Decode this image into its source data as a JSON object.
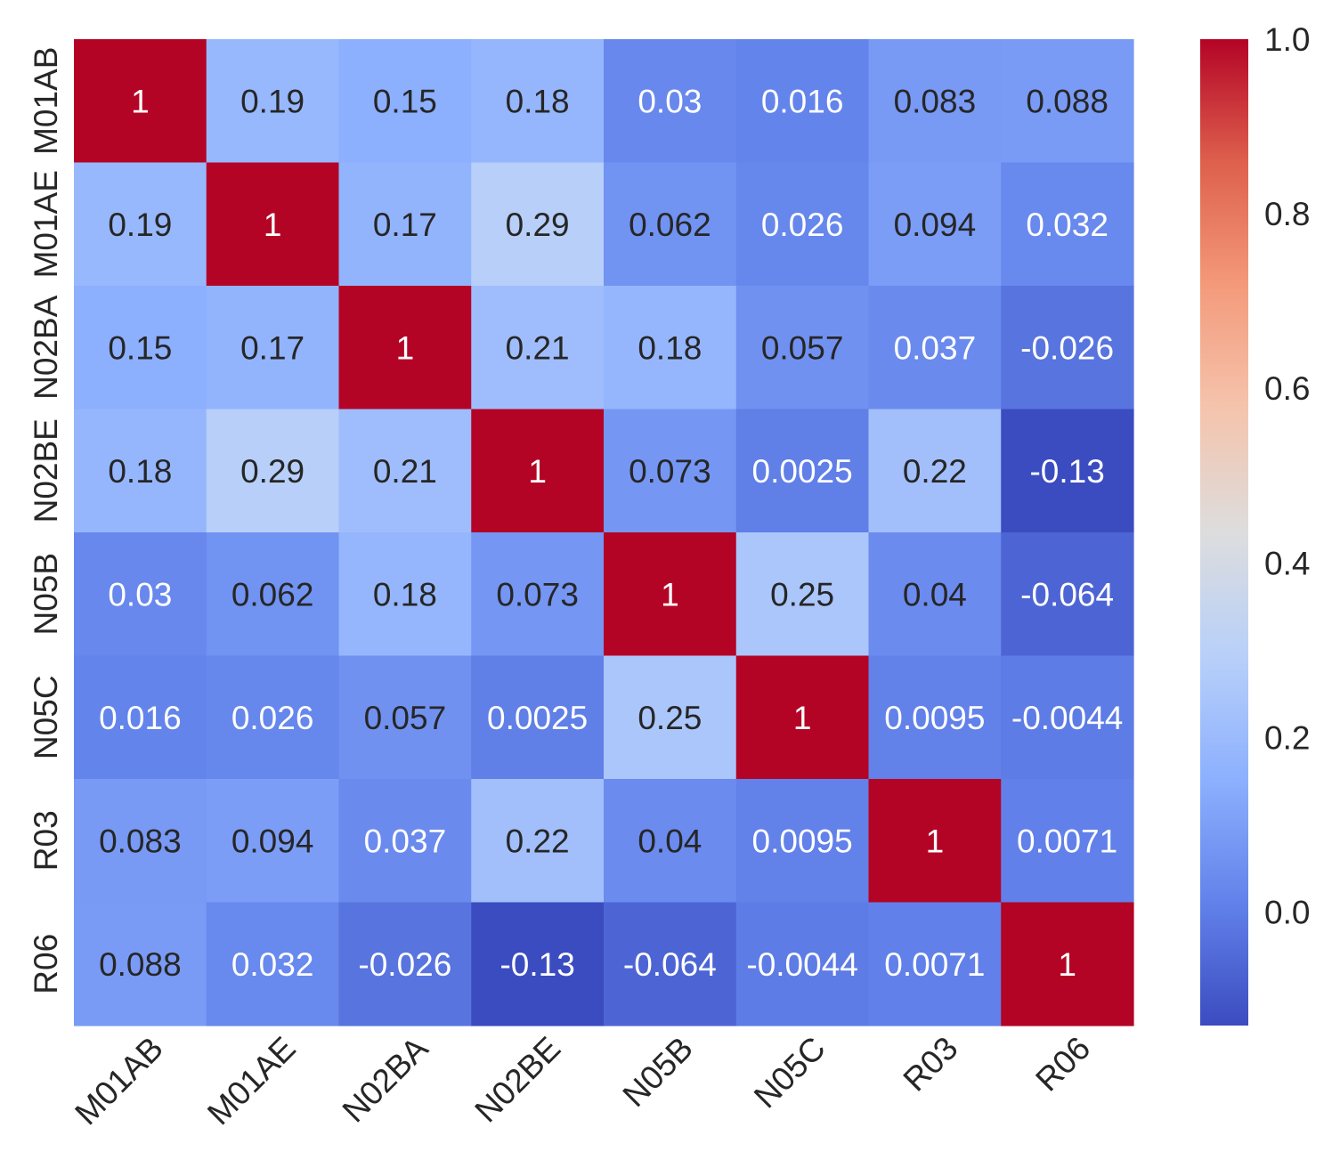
{
  "chart_data": {
    "type": "heatmap",
    "title": "",
    "xlabel": "",
    "ylabel": "",
    "x_categories": [
      "M01AB",
      "M01AE",
      "N02BA",
      "N02BE",
      "N05B",
      "N05C",
      "R03",
      "R06"
    ],
    "y_categories": [
      "M01AB",
      "M01AE",
      "N02BA",
      "N02BE",
      "N05B",
      "N05C",
      "R03",
      "R06"
    ],
    "values": [
      [
        1,
        0.19,
        0.15,
        0.18,
        0.03,
        0.016,
        0.083,
        0.088
      ],
      [
        0.19,
        1,
        0.17,
        0.29,
        0.062,
        0.026,
        0.094,
        0.032
      ],
      [
        0.15,
        0.17,
        1,
        0.21,
        0.18,
        0.057,
        0.037,
        -0.026
      ],
      [
        0.18,
        0.29,
        0.21,
        1,
        0.073,
        0.0025,
        0.22,
        -0.13
      ],
      [
        0.03,
        0.062,
        0.18,
        0.073,
        1,
        0.25,
        0.04,
        -0.064
      ],
      [
        0.016,
        0.026,
        0.057,
        0.0025,
        0.25,
        1,
        0.0095,
        -0.0044
      ],
      [
        0.083,
        0.094,
        0.037,
        0.22,
        0.04,
        0.0095,
        1,
        0.0071
      ],
      [
        0.088,
        0.032,
        -0.026,
        -0.13,
        -0.064,
        -0.0044,
        0.0071,
        1
      ]
    ],
    "labels": [
      [
        "1",
        "0.19",
        "0.15",
        "0.18",
        "0.03",
        "0.016",
        "0.083",
        "0.088"
      ],
      [
        "0.19",
        "1",
        "0.17",
        "0.29",
        "0.062",
        "0.026",
        "0.094",
        "0.032"
      ],
      [
        "0.15",
        "0.17",
        "1",
        "0.21",
        "0.18",
        "0.057",
        "0.037",
        "-0.026"
      ],
      [
        "0.18",
        "0.29",
        "0.21",
        "1",
        "0.073",
        "0.0025",
        "0.22",
        "-0.13"
      ],
      [
        "0.03",
        "0.062",
        "0.18",
        "0.073",
        "1",
        "0.25",
        "0.04",
        "-0.064"
      ],
      [
        "0.016",
        "0.026",
        "0.057",
        "0.0025",
        "0.25",
        "1",
        "0.0095",
        "-0.0044"
      ],
      [
        "0.083",
        "0.094",
        "0.037",
        "0.22",
        "0.04",
        "0.0095",
        "1",
        "0.0071"
      ],
      [
        "0.088",
        "0.032",
        "-0.026",
        "-0.13",
        "-0.064",
        "-0.0044",
        "0.0071",
        "1"
      ]
    ],
    "colormap": "coolwarm",
    "vmin": -0.13,
    "vmax": 1.0,
    "colorbar": {
      "ticks": [
        0.0,
        0.2,
        0.4,
        0.6,
        0.8,
        1.0
      ],
      "tick_labels": [
        "0.0",
        "0.2",
        "0.4",
        "0.6",
        "0.8",
        "1.0"
      ]
    },
    "grid": false,
    "text_colors": {
      "dark": "#262626",
      "light": "#ffffff"
    }
  }
}
